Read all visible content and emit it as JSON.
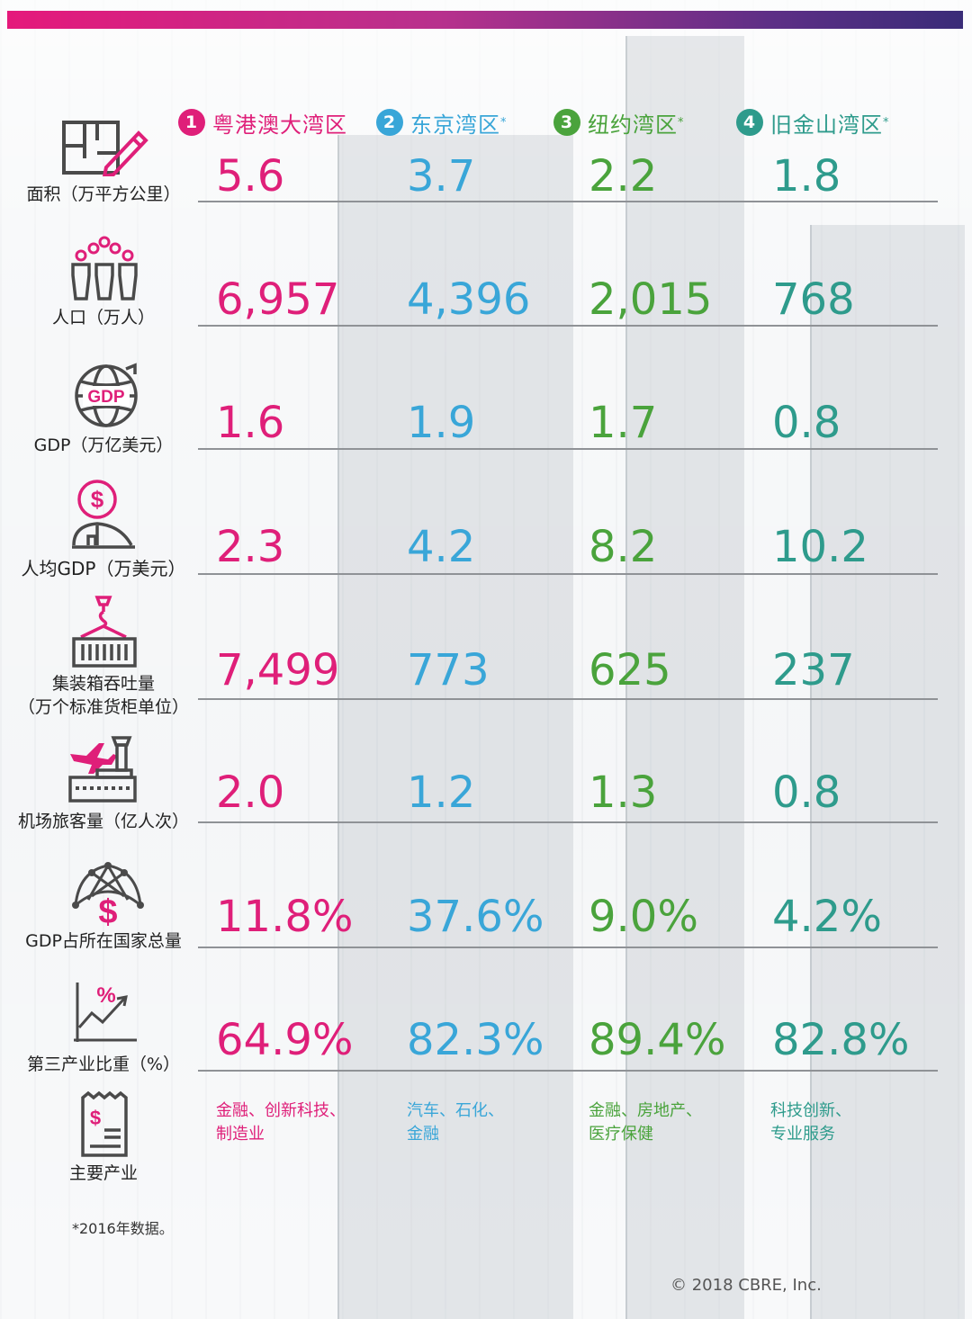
{
  "colors": {
    "region1": "#df1f79",
    "region2": "#39a6d8",
    "region3": "#4aa33c",
    "region4": "#2e9b8c",
    "icon": "#4a4a4a",
    "icon_accent": "#df1f79"
  },
  "regions": [
    {
      "num": "1",
      "name": "粤港澳大湾区",
      "mark": ""
    },
    {
      "num": "2",
      "name": "东京湾区",
      "mark": "*"
    },
    {
      "num": "3",
      "name": "纽约湾区",
      "mark": "*"
    },
    {
      "num": "4",
      "name": "旧金山湾区",
      "mark": "*"
    }
  ],
  "rows": [
    {
      "icon": "floorplan-pencil-icon",
      "label": "面积（万平方公里）",
      "values": [
        "5.6",
        "3.7",
        "2.2",
        "1.8"
      ]
    },
    {
      "icon": "population-icon",
      "label": "人口（万人）",
      "values": [
        "6,957",
        "4,396",
        "2,015",
        "768"
      ]
    },
    {
      "icon": "globe-gdp-icon",
      "icon_text": "GDP",
      "label": "GDP（万亿美元）",
      "values": [
        "1.6",
        "1.9",
        "1.7",
        "0.8"
      ]
    },
    {
      "icon": "person-dollar-icon",
      "icon_text": "$",
      "label": "人均GDP（万美元）",
      "values": [
        "2.3",
        "4.2",
        "8.2",
        "10.2"
      ]
    },
    {
      "icon": "container-crane-icon",
      "label": "集装箱吞吐量",
      "label2": "（万个标准货柜单位）",
      "values": [
        "7,499",
        "773",
        "625",
        "237"
      ]
    },
    {
      "icon": "airport-plane-icon",
      "label": "机场旅客量（亿人次）",
      "values": [
        "2.0",
        "1.2",
        "1.3",
        "0.8"
      ]
    },
    {
      "icon": "network-dollar-icon",
      "icon_text": "$",
      "label": "GDP占所在国家总量",
      "values": [
        "11.8%",
        "37.6%",
        "9.0%",
        "4.2%"
      ]
    },
    {
      "icon": "percent-growth-chart-icon",
      "icon_text": "%",
      "label": "第三产业比重（%）",
      "values": [
        "64.9%",
        "82.3%",
        "89.4%",
        "82.8%"
      ]
    }
  ],
  "industry": {
    "icon": "receipt-dollar-icon",
    "icon_text": "$",
    "label": "主要产业",
    "values": [
      [
        "金融、创新科技、",
        "制造业"
      ],
      [
        "汽车、石化、",
        "金融"
      ],
      [
        "金融、房地产、",
        "医疗保健"
      ],
      [
        "科技创新、",
        "专业服务"
      ]
    ]
  },
  "footnote": "*2016年数据。",
  "copyright": "© 2018 CBRE, Inc."
}
